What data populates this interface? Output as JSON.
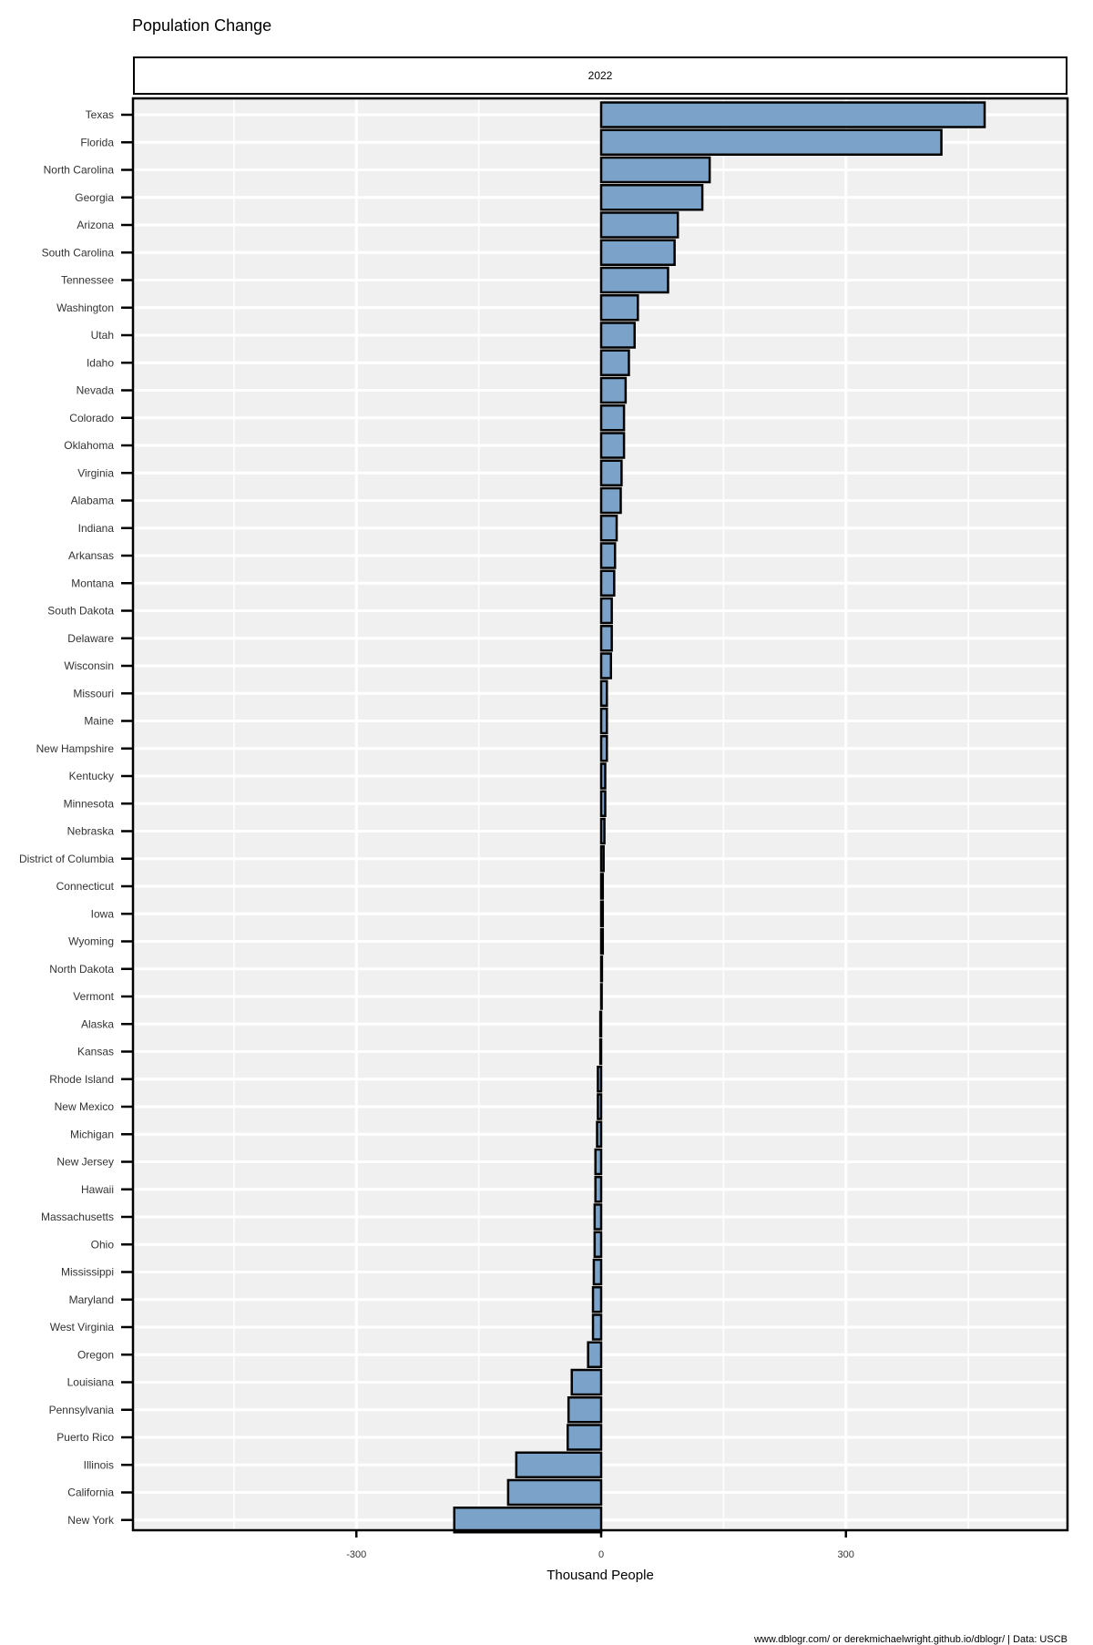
{
  "chart_data": {
    "type": "bar",
    "orientation": "horizontal",
    "title": "Population Change",
    "facet_label": "2022",
    "xlabel": "Thousand People",
    "ylabel": "",
    "xlim": [
      -575,
      575
    ],
    "xticks": [
      -300,
      0,
      300
    ],
    "grid": true,
    "legend": "none",
    "caption": "www.dblogr.com/ or derekmichaelwright.github.io/dblogr/ | Data: USCB",
    "categories": [
      "Texas",
      "Florida",
      "North Carolina",
      "Georgia",
      "Arizona",
      "South Carolina",
      "Tennessee",
      "Washington",
      "Utah",
      "Idaho",
      "Nevada",
      "Colorado",
      "Oklahoma",
      "Virginia",
      "Alabama",
      "Indiana",
      "Arkansas",
      "Montana",
      "South Dakota",
      "Delaware",
      "Wisconsin",
      "Missouri",
      "Maine",
      "New Hampshire",
      "Kentucky",
      "Minnesota",
      "Nebraska",
      "District of Columbia",
      "Connecticut",
      "Iowa",
      "Wyoming",
      "North Dakota",
      "Vermont",
      "Alaska",
      "Kansas",
      "Rhode Island",
      "New Mexico",
      "Michigan",
      "New Jersey",
      "Hawaii",
      "Massachusetts",
      "Ohio",
      "Mississippi",
      "Maryland",
      "West Virginia",
      "Oregon",
      "Louisiana",
      "Pennsylvania",
      "Puerto Rico",
      "Illinois",
      "California",
      "New York"
    ],
    "values": [
      470,
      417,
      133,
      124,
      94,
      90,
      82,
      45,
      41,
      34,
      30,
      28,
      28,
      25,
      24,
      19,
      17,
      16,
      13,
      13,
      12,
      7,
      7,
      7,
      5,
      5,
      4,
      3,
      2,
      2,
      2,
      1,
      0,
      -1,
      -1,
      -4,
      -4,
      -5,
      -7,
      -7,
      -8,
      -8,
      -9,
      -10,
      -10,
      -16,
      -36,
      -40,
      -41,
      -104,
      -114,
      -180
    ],
    "colors": {
      "bar_fill": "#7ba3c9",
      "bar_stroke": "#000000",
      "panel_bg": "#f0f0f0",
      "grid": "#ffffff"
    }
  }
}
